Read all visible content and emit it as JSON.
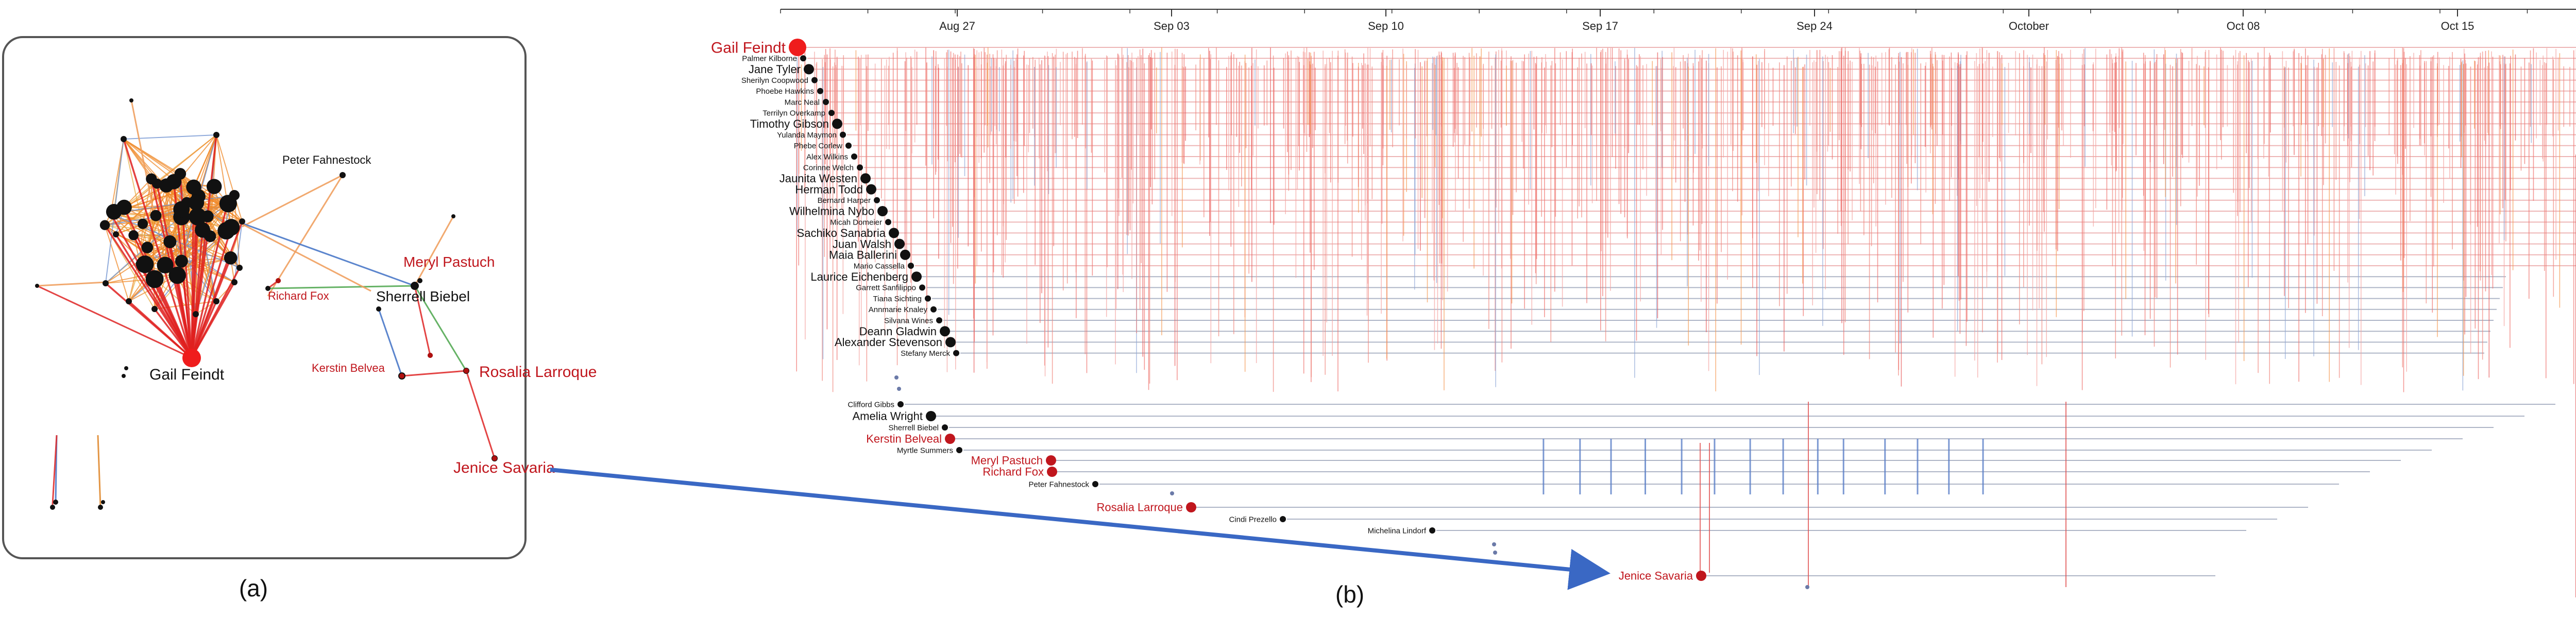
{
  "panel_a": {
    "caption": "(a)",
    "labels": {
      "gail": "Gail Feindt",
      "peter": "Peter Fahnestock",
      "meryl": "Meryl Pastuch",
      "richard": "Richard Fox",
      "sherrell": "Sherrell Biebel",
      "kerstin": "Kerstin Belvea",
      "rosalia": "Rosalia Larroque",
      "jenice": "Jenice Savaria"
    }
  },
  "panel_b": {
    "caption": "(b)",
    "date_ticks": [
      "Aug 27",
      "Sep 03",
      "Sep 10",
      "Sep 17",
      "Sep 24",
      "October",
      "Oct 08",
      "Oct 15"
    ],
    "people": [
      {
        "name": "Gail Feindt",
        "big": true,
        "red": true
      },
      {
        "name": "Palmer Kilborne"
      },
      {
        "name": "Jane Tyler",
        "big": true
      },
      {
        "name": "Sherilyn Coopwood"
      },
      {
        "name": "Phoebe Hawkins"
      },
      {
        "name": "Marc Neal"
      },
      {
        "name": "Terrilyn Overkamp"
      },
      {
        "name": "Timothy Gibson",
        "big": true
      },
      {
        "name": "Yulanda Maymon"
      },
      {
        "name": "Phebe Corlew"
      },
      {
        "name": "Alex Wilkins"
      },
      {
        "name": "Corinne Welch"
      },
      {
        "name": "Jaunita Westen",
        "big": true
      },
      {
        "name": "Herman Todd",
        "big": true
      },
      {
        "name": "Bernard Harper"
      },
      {
        "name": "Wilhelmina Nybo",
        "big": true
      },
      {
        "name": "Micah Domeier"
      },
      {
        "name": "Sachiko Sanabria",
        "big": true
      },
      {
        "name": "Juan Walsh",
        "big": true
      },
      {
        "name": "Maia Ballerini",
        "big": true
      },
      {
        "name": "Mario Cassella"
      },
      {
        "name": "Laurice Eichenberg",
        "big": true
      },
      {
        "name": "Garrett Sanfilippo"
      },
      {
        "name": "Tiana Sichting"
      },
      {
        "name": "Annmarie Knaley"
      },
      {
        "name": "Silvana Wines"
      },
      {
        "name": "Deann Gladwin",
        "big": true
      },
      {
        "name": "Alexander Stevenson",
        "big": true
      },
      {
        "name": "Stefany Merck"
      },
      {
        "name": "Clifford Gibbs"
      },
      {
        "name": "Amelia Wright",
        "big": true
      },
      {
        "name": "Sherrell Biebel"
      },
      {
        "name": "Kerstin Belveal",
        "big": true,
        "red": true
      },
      {
        "name": "Myrtle Summers"
      },
      {
        "name": "Meryl Pastuch",
        "big": true,
        "red": true
      },
      {
        "name": "Richard Fox",
        "big": true,
        "red": true
      },
      {
        "name": "Peter Fahnestock"
      },
      {
        "name": "Rosalia Larroque",
        "big": true,
        "red": true
      },
      {
        "name": "Cindi Prezello"
      },
      {
        "name": "Michelina Lindorf"
      },
      {
        "name": "Jenice Savaria",
        "big": true,
        "red": true
      }
    ]
  }
}
